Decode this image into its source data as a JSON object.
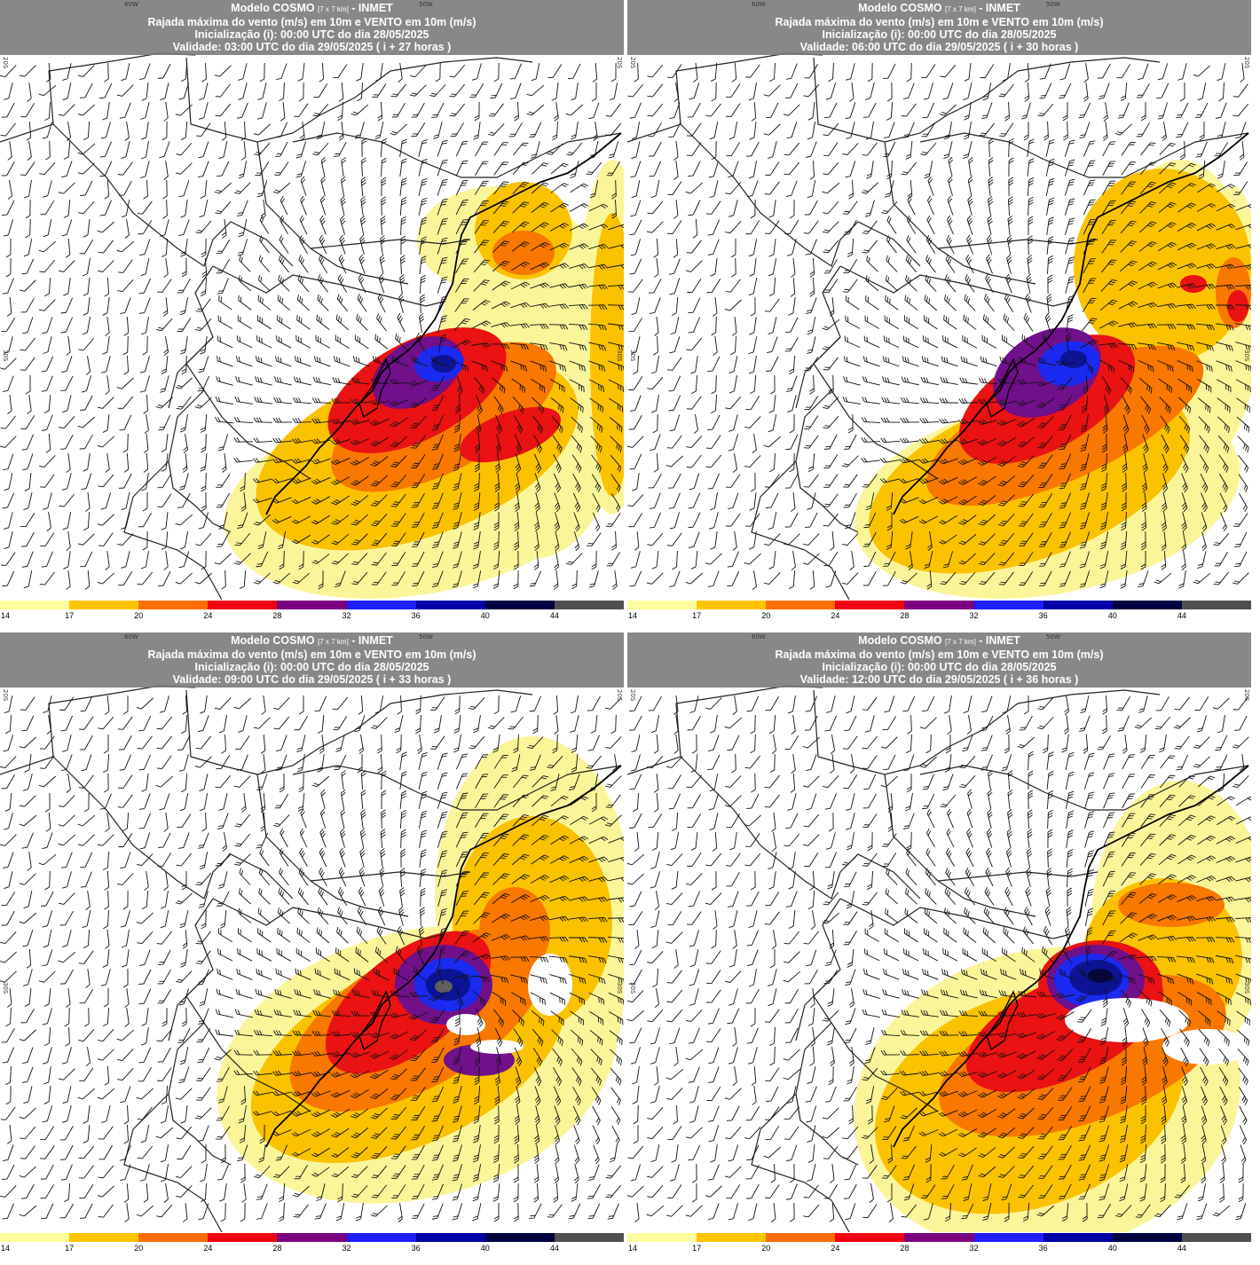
{
  "panels": [
    {
      "title_main": "Modelo COSMO",
      "title_res": "[7 x 7 km]",
      "title_org": "- INMET",
      "subtitle": "Rajada máxima do vento (m/s) em 10m e VENTO em 10m (m/s)",
      "init": "Inicialização (i): 00:00 UTC do dia 28/05/2025",
      "valid": "Validade: 03:00 UTC do dia 29/05/2025 ( i + 27 horas )"
    },
    {
      "title_main": "Modelo COSMO",
      "title_res": "[7 x 7 km]",
      "title_org": "- INMET",
      "subtitle": "Rajada máxima do vento (m/s) em 10m e VENTO em 10m (m/s)",
      "init": "Inicialização (i): 00:00 UTC do dia 28/05/2025",
      "valid": "Validade: 06:00 UTC do dia 29/05/2025 ( i + 30 horas )"
    },
    {
      "title_main": "Modelo COSMO",
      "title_res": "[7 x 7 km]",
      "title_org": "- INMET",
      "subtitle": "Rajada máxima do vento (m/s) em 10m e VENTO em 10m (m/s)",
      "init": "Inicialização (i): 00:00 UTC do dia 28/05/2025",
      "valid": "Validade: 09:00 UTC do dia 29/05/2025 ( i + 33 horas )"
    },
    {
      "title_main": "Modelo COSMO",
      "title_res": "[7 x 7 km]",
      "title_org": "- INMET",
      "subtitle": "Rajada máxima do vento (m/s) em 10m e VENTO em 10m (m/s)",
      "init": "Inicialização (i): 00:00 UTC do dia 28/05/2025",
      "valid": "Validade: 12:00 UTC do dia 29/05/2025 ( i + 36 horas )"
    }
  ],
  "coords": {
    "lon_60": "60W",
    "lon_50": "50W",
    "lat_20": "20S",
    "lat_30": "30S"
  },
  "scale": {
    "ticks": [
      "14",
      "17",
      "20",
      "24",
      "28",
      "32",
      "36",
      "40",
      "44"
    ],
    "colors": [
      "#fefe9e",
      "#fec400",
      "#fe6e00",
      "#f00010",
      "#7a0080",
      "#1e1efe",
      "#0000a6",
      "#000040",
      "#505050"
    ]
  },
  "palette": {
    "c14": "#fbf59a",
    "c17": "#fbc200",
    "c20": "#f87800",
    "c24": "#ea1212",
    "c28": "#70108a",
    "c32": "#1a2af0",
    "c36": "#0c1494",
    "c40": "#07073e",
    "c44": "#606060"
  }
}
